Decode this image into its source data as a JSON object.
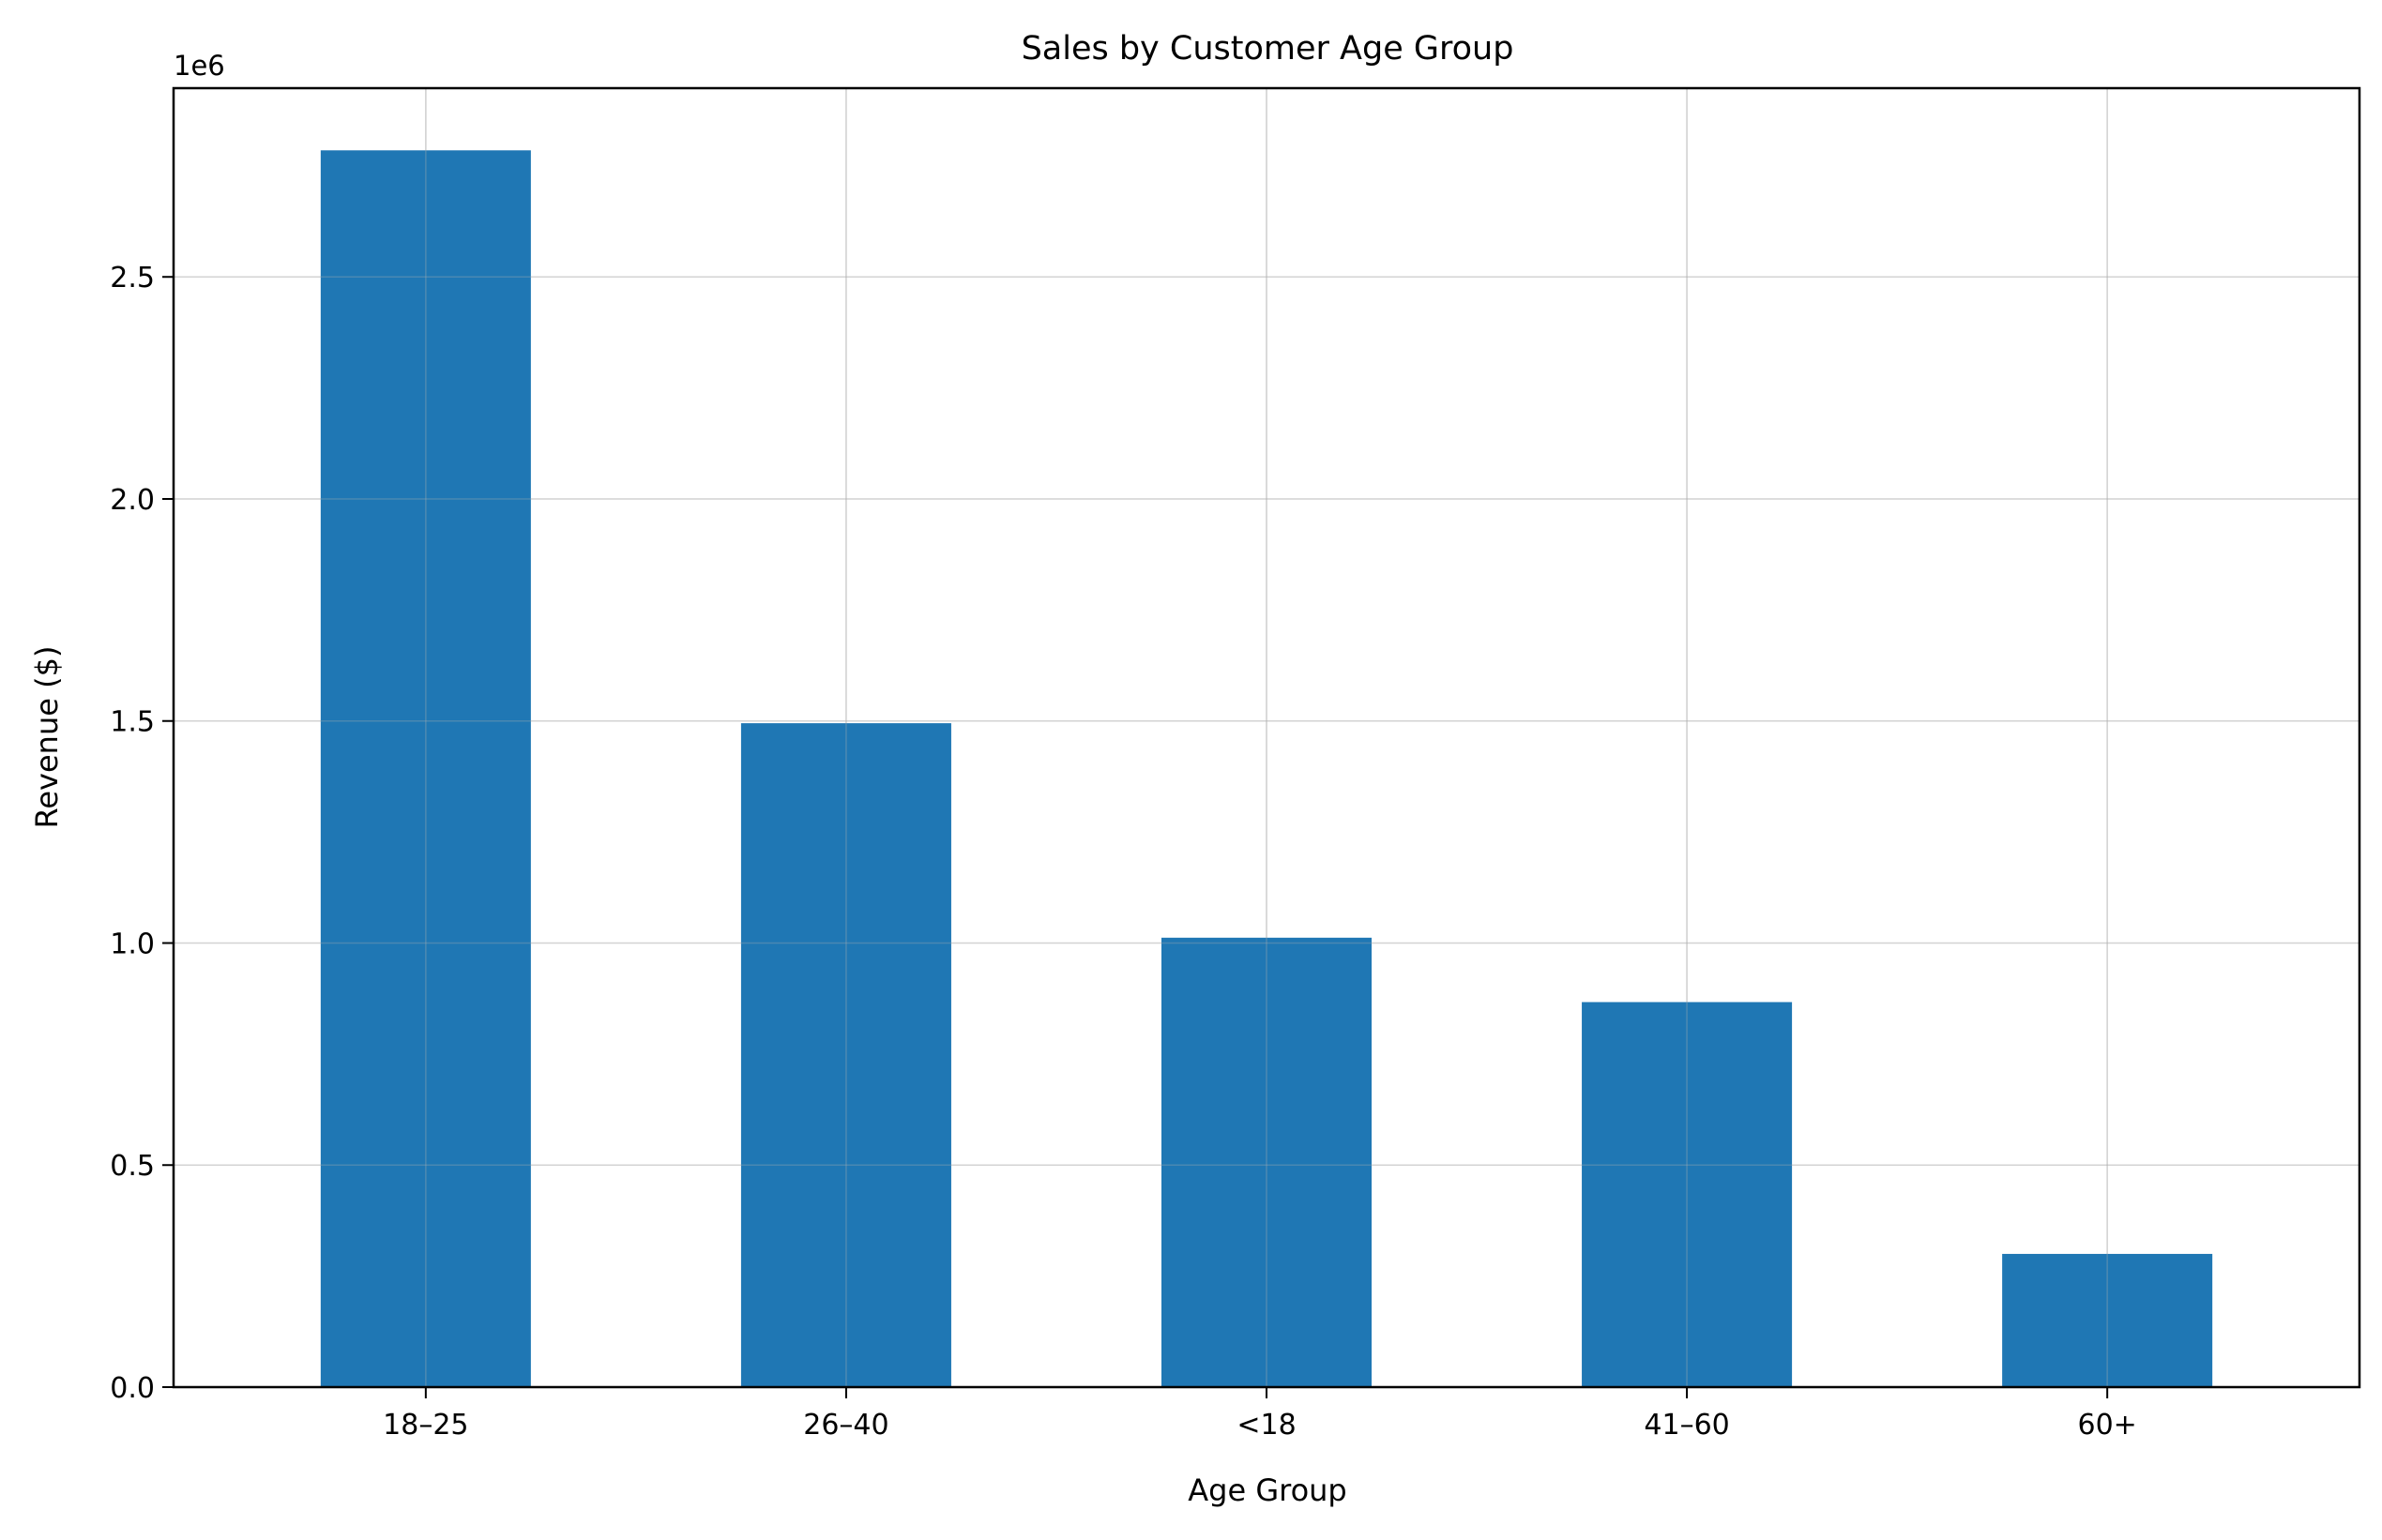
{
  "chart_data": {
    "type": "bar",
    "title": "Sales by Customer Age Group",
    "xlabel": "Age Group",
    "ylabel": "Revenue ($)",
    "y_offset_label": "1e6",
    "categories": [
      "18–25",
      "26–40",
      "<18",
      "41–60",
      "60+"
    ],
    "values": [
      2785000,
      1495000,
      1012000,
      867000,
      300000
    ],
    "ylim": [
      0,
      2925000
    ],
    "yticks": [
      0,
      500000,
      1000000,
      1500000,
      2000000,
      2500000
    ],
    "ytick_labels": [
      "0.0",
      "0.5",
      "1.0",
      "1.5",
      "2.0",
      "2.5"
    ],
    "grid": true,
    "bar_color": "#1f77b4"
  }
}
